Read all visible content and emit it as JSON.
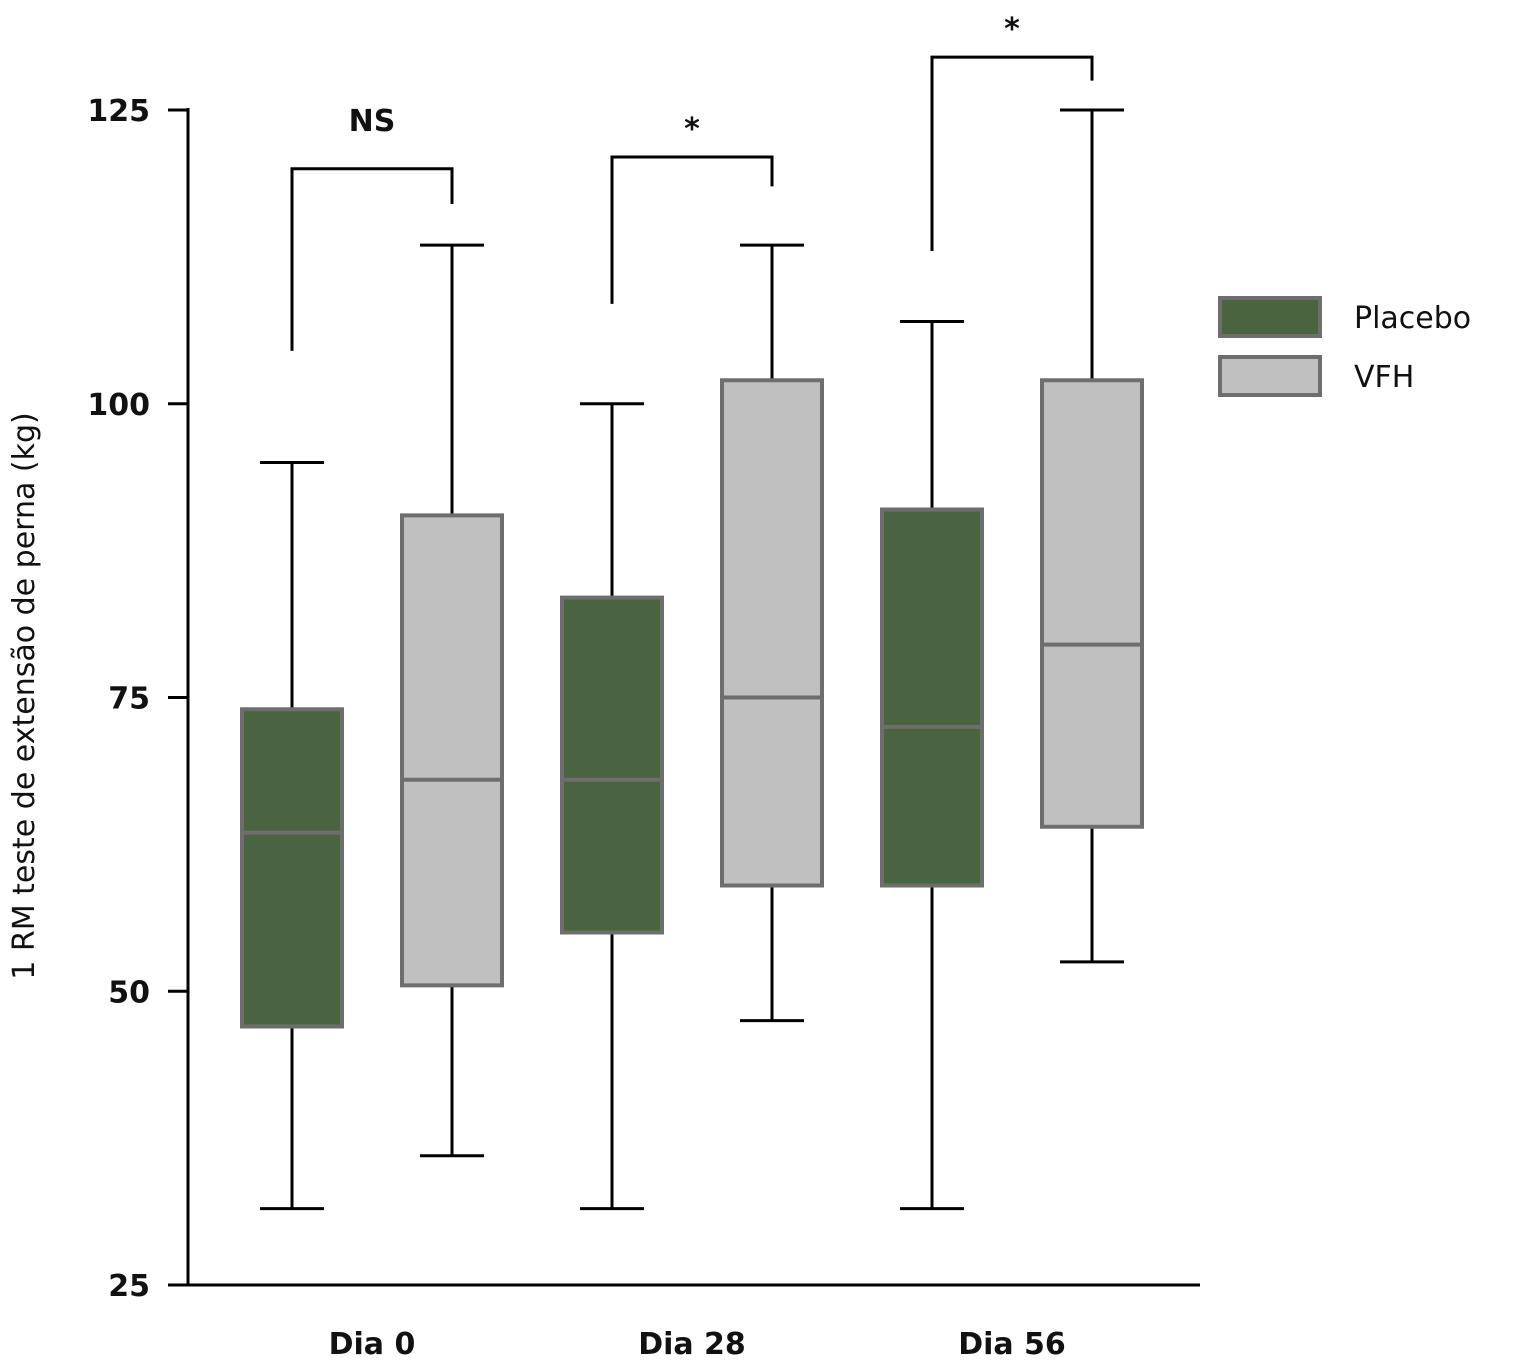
{
  "chart_data": {
    "type": "box",
    "ylabel": "1 RM teste de extensão de perna (kg)",
    "ylim": [
      25,
      125
    ],
    "yticks": [
      25,
      50,
      75,
      100,
      125
    ],
    "categories": [
      "Dia 0",
      "Dia 28",
      "Dia 56"
    ],
    "series": [
      {
        "name": "Placebo",
        "color": "#4a643f",
        "boxes": [
          {
            "min": 31.5,
            "q1": 47,
            "median": 63.5,
            "q3": 74,
            "max": 95
          },
          {
            "min": 31.5,
            "q1": 55,
            "median": 68,
            "q3": 83.5,
            "max": 100
          },
          {
            "min": 31.5,
            "q1": 59,
            "median": 72.5,
            "q3": 91,
            "max": 107
          }
        ]
      },
      {
        "name": "VFH",
        "color": "#c0c0c0",
        "boxes": [
          {
            "min": 36,
            "q1": 50.5,
            "median": 68,
            "q3": 90.5,
            "max": 113.5
          },
          {
            "min": 47.5,
            "q1": 59,
            "median": 75,
            "q3": 102,
            "max": 113.5
          },
          {
            "min": 52.5,
            "q1": 64,
            "median": 79.5,
            "q3": 102,
            "max": 125
          }
        ]
      }
    ],
    "significance": [
      {
        "category": "Dia 0",
        "label": "NS",
        "left_y": 104.5,
        "right_y": 117,
        "top_y": 120
      },
      {
        "category": "Dia 28",
        "label": "*",
        "left_y": 108.5,
        "right_y": 118.5,
        "top_y": 121
      },
      {
        "category": "Dia 56",
        "label": "*",
        "left_y": 113,
        "right_y": 127.5,
        "top_y": 129.5
      }
    ],
    "legend": {
      "position": "right",
      "items": [
        {
          "label": "Placebo",
          "color": "#4a643f"
        },
        {
          "label": "VFH",
          "color": "#c0c0c0"
        }
      ]
    },
    "grid": false
  }
}
